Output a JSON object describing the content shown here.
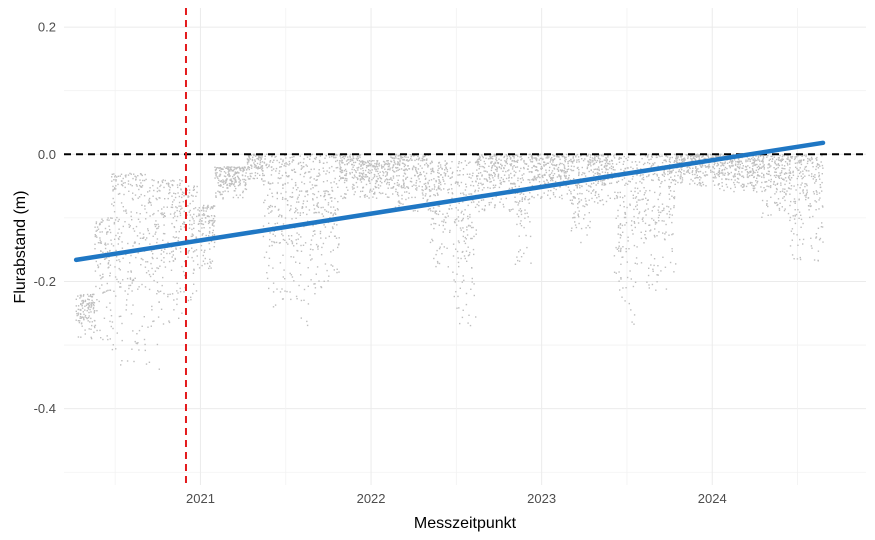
{
  "chart_data": {
    "type": "scatter",
    "title": "",
    "xlabel": "Messzeitpunkt",
    "ylabel": "Flurabstand (m)",
    "xlim": [
      "2020-03-15",
      "2024-11-25"
    ],
    "ylim": [
      -0.52,
      0.23
    ],
    "x_ticks": [
      {
        "date": "2021-01-01",
        "label": "2021"
      },
      {
        "date": "2022-01-01",
        "label": "2022"
      },
      {
        "date": "2023-01-01",
        "label": "2023"
      },
      {
        "date": "2024-01-01",
        "label": "2024"
      }
    ],
    "y_ticks": [
      {
        "value": 0.2,
        "label": "0.2"
      },
      {
        "value": 0.0,
        "label": "0.0"
      },
      {
        "value": -0.2,
        "label": "-0.2"
      },
      {
        "value": -0.4,
        "label": "-0.4"
      }
    ],
    "grid": true,
    "reference_lines": [
      {
        "orientation": "horizontal",
        "value": 0.0,
        "style": "dashed",
        "color": "#000000"
      },
      {
        "orientation": "vertical",
        "date": "2020-12-01",
        "style": "dashed",
        "color": "#e41a1c"
      }
    ],
    "trend_line": {
      "color": "#1f77c4",
      "points": [
        {
          "date": "2020-04-10",
          "value": -0.166
        },
        {
          "date": "2024-08-25",
          "value": 0.018
        }
      ]
    },
    "series": [
      {
        "color": "#bfbfbf",
        "episodes": [
          {
            "start": "2020-04-10",
            "end": "2020-05-20",
            "top": -0.22,
            "bottom": -0.29
          },
          {
            "start": "2020-05-20",
            "end": "2020-06-25",
            "top": -0.1,
            "bottom": -0.3
          },
          {
            "start": "2020-06-25",
            "end": "2020-09-10",
            "top": -0.03,
            "bottom": -0.34
          },
          {
            "start": "2020-09-10",
            "end": "2020-10-10",
            "top": -0.04,
            "bottom": -0.34
          },
          {
            "start": "2020-10-10",
            "end": "2020-11-25",
            "top": -0.04,
            "bottom": -0.27
          },
          {
            "start": "2020-11-25",
            "end": "2020-12-25",
            "top": -0.05,
            "bottom": -0.23
          },
          {
            "start": "2020-12-25",
            "end": "2021-02-01",
            "top": -0.08,
            "bottom": -0.18
          },
          {
            "start": "2021-02-01",
            "end": "2021-04-10",
            "top": -0.02,
            "bottom": -0.07
          },
          {
            "start": "2021-04-10",
            "end": "2021-05-15",
            "top": 0.0,
            "bottom": -0.04
          },
          {
            "start": "2021-05-15",
            "end": "2021-07-15",
            "top": 0.0,
            "bottom": -0.24
          },
          {
            "start": "2021-07-15",
            "end": "2021-09-01",
            "top": 0.0,
            "bottom": -0.27
          },
          {
            "start": "2021-09-01",
            "end": "2021-10-25",
            "top": 0.0,
            "bottom": -0.22
          },
          {
            "start": "2021-10-25",
            "end": "2021-12-10",
            "top": 0.0,
            "bottom": -0.07
          },
          {
            "start": "2021-12-10",
            "end": "2022-02-10",
            "top": -0.01,
            "bottom": -0.07
          },
          {
            "start": "2022-02-10",
            "end": "2022-05-05",
            "top": 0.0,
            "bottom": -0.09
          },
          {
            "start": "2022-05-05",
            "end": "2022-06-25",
            "top": -0.01,
            "bottom": -0.18
          },
          {
            "start": "2022-06-25",
            "end": "2022-08-15",
            "top": -0.01,
            "bottom": -0.27
          },
          {
            "start": "2022-08-15",
            "end": "2022-11-05",
            "top": 0.0,
            "bottom": -0.09
          },
          {
            "start": "2022-11-05",
            "end": "2022-12-10",
            "top": 0.0,
            "bottom": -0.18
          },
          {
            "start": "2022-12-10",
            "end": "2023-03-01",
            "top": 0.0,
            "bottom": -0.07
          },
          {
            "start": "2023-03-01",
            "end": "2023-04-15",
            "top": 0.0,
            "bottom": -0.14
          },
          {
            "start": "2023-04-15",
            "end": "2023-06-05",
            "top": 0.0,
            "bottom": -0.08
          },
          {
            "start": "2023-06-05",
            "end": "2023-07-20",
            "top": 0.0,
            "bottom": -0.27
          },
          {
            "start": "2023-07-20",
            "end": "2023-10-15",
            "top": 0.0,
            "bottom": -0.22
          },
          {
            "start": "2023-10-15",
            "end": "2024-01-15",
            "top": 0.0,
            "bottom": -0.05
          },
          {
            "start": "2024-01-15",
            "end": "2024-04-15",
            "top": 0.0,
            "bottom": -0.06
          },
          {
            "start": "2024-04-15",
            "end": "2024-06-15",
            "top": 0.0,
            "bottom": -0.1
          },
          {
            "start": "2024-06-15",
            "end": "2024-08-25",
            "top": 0.0,
            "bottom": -0.17
          }
        ]
      }
    ]
  }
}
